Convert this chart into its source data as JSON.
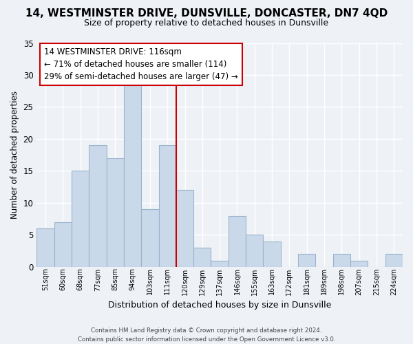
{
  "title": "14, WESTMINSTER DRIVE, DUNSVILLE, DONCASTER, DN7 4QD",
  "subtitle": "Size of property relative to detached houses in Dunsville",
  "xlabel": "Distribution of detached houses by size in Dunsville",
  "ylabel": "Number of detached properties",
  "bin_labels": [
    "51sqm",
    "60sqm",
    "68sqm",
    "77sqm",
    "85sqm",
    "94sqm",
    "103sqm",
    "111sqm",
    "120sqm",
    "129sqm",
    "137sqm",
    "146sqm",
    "155sqm",
    "163sqm",
    "172sqm",
    "181sqm",
    "189sqm",
    "198sqm",
    "207sqm",
    "215sqm",
    "224sqm"
  ],
  "bar_values": [
    6,
    7,
    15,
    19,
    17,
    29,
    9,
    19,
    12,
    3,
    1,
    8,
    5,
    4,
    0,
    2,
    0,
    2,
    1,
    0,
    2
  ],
  "bar_color": "#c9d9ea",
  "bar_edge_color": "#9ab4cc",
  "vline_color": "#cc0000",
  "vline_x_index": 7.5,
  "ylim": [
    0,
    35
  ],
  "yticks": [
    0,
    5,
    10,
    15,
    20,
    25,
    30,
    35
  ],
  "annotation_title": "14 WESTMINSTER DRIVE: 116sqm",
  "annotation_line1": "← 71% of detached houses are smaller (114)",
  "annotation_line2": "29% of semi-detached houses are larger (47) →",
  "annotation_box_facecolor": "#ffffff",
  "annotation_box_edgecolor": "#cc0000",
  "footer_line1": "Contains HM Land Registry data © Crown copyright and database right 2024.",
  "footer_line2": "Contains public sector information licensed under the Open Government Licence v3.0.",
  "background_color": "#eef2f7",
  "grid_color": "#ffffff",
  "title_fontsize": 11,
  "subtitle_fontsize": 9
}
